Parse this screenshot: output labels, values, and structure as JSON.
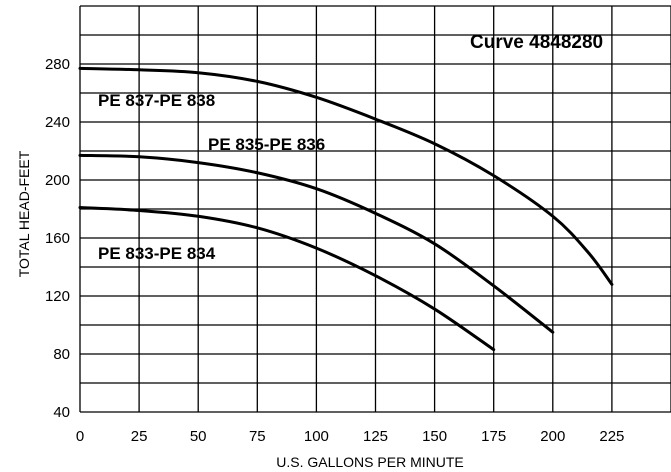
{
  "chart_data": {
    "type": "line",
    "title": "Curve 4848280",
    "xlabel": "U.S. GALLONS PER MINUTE",
    "ylabel": "TOTAL HEAD-FEET",
    "xlim": [
      0,
      250
    ],
    "ylim": [
      40,
      320
    ],
    "xticks": [
      "0",
      "25",
      "50",
      "75",
      "100",
      "125",
      "150",
      "175",
      "200",
      "225"
    ],
    "yticks": [
      "40",
      "80",
      "120",
      "160",
      "200",
      "240",
      "280"
    ],
    "grid": true,
    "series": [
      {
        "name": "PE 837-PE 838",
        "x": [
          0,
          25,
          50,
          75,
          100,
          125,
          150,
          175,
          200,
          215,
          225
        ],
        "y": [
          277,
          276,
          274,
          268,
          257,
          242,
          225,
          203,
          175,
          150,
          128
        ]
      },
      {
        "name": "PE 835-PE 836",
        "x": [
          0,
          25,
          50,
          75,
          100,
          125,
          150,
          175,
          200
        ],
        "y": [
          217,
          216,
          212,
          205,
          194,
          177,
          156,
          127,
          95
        ]
      },
      {
        "name": "PE 833-PE 834",
        "x": [
          0,
          25,
          50,
          75,
          100,
          125,
          150,
          175
        ],
        "y": [
          181,
          179,
          175,
          167,
          153,
          134,
          111,
          83
        ]
      }
    ]
  }
}
